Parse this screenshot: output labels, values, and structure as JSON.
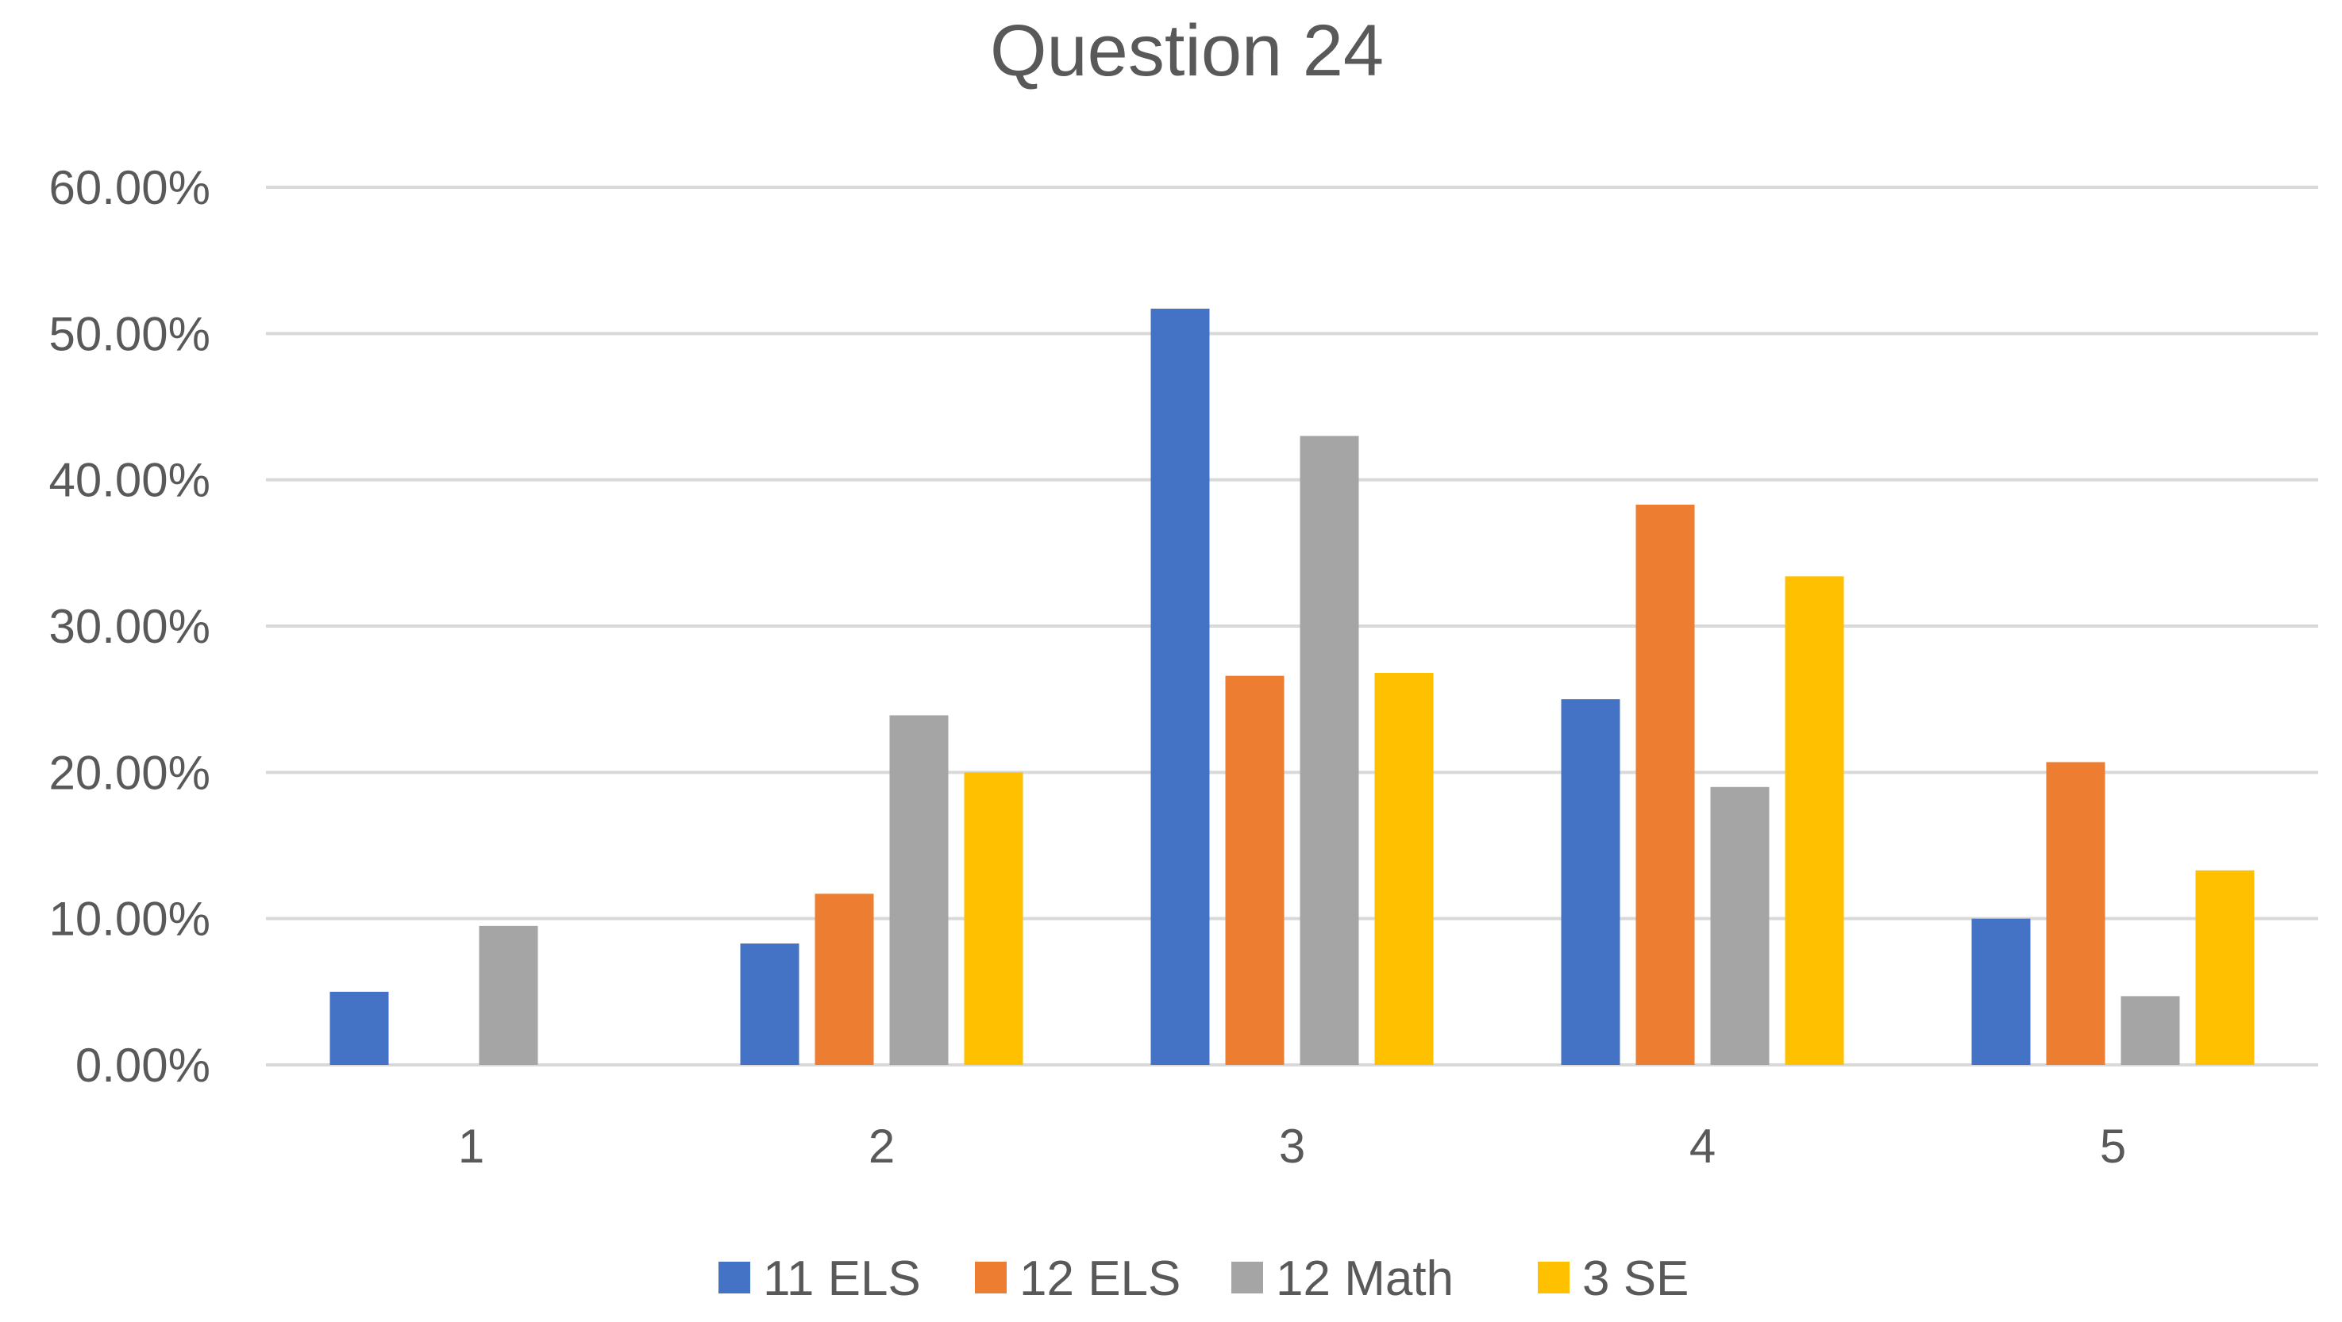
{
  "chart_data": {
    "type": "bar",
    "title": "Question 24",
    "xlabel": "",
    "ylabel": "",
    "categories": [
      "1",
      "2",
      "3",
      "4",
      "5"
    ],
    "ylim": [
      0,
      0.6
    ],
    "yticks": [
      0,
      0.1,
      0.2,
      0.3,
      0.4,
      0.5,
      0.6
    ],
    "ytick_labels": [
      "0.00%",
      "10.00%",
      "20.00%",
      "30.00%",
      "40.00%",
      "50.00%",
      "60.00%"
    ],
    "grid": true,
    "legend_position": "bottom",
    "series": [
      {
        "name": "11 ELS",
        "color": "#4472C4",
        "values": [
          0.05,
          0.083,
          0.517,
          0.25,
          0.1
        ]
      },
      {
        "name": "12 ELS",
        "color": "#ED7D31",
        "values": [
          0.0,
          0.117,
          0.266,
          0.383,
          0.207
        ]
      },
      {
        "name": "12 Math",
        "color": "#A5A5A5",
        "values": [
          0.095,
          0.239,
          0.43,
          0.19,
          0.047
        ]
      },
      {
        "name": "3 SE",
        "color": "#FFC000",
        "values": [
          0.0,
          0.2,
          0.268,
          0.334,
          0.133
        ]
      }
    ]
  }
}
